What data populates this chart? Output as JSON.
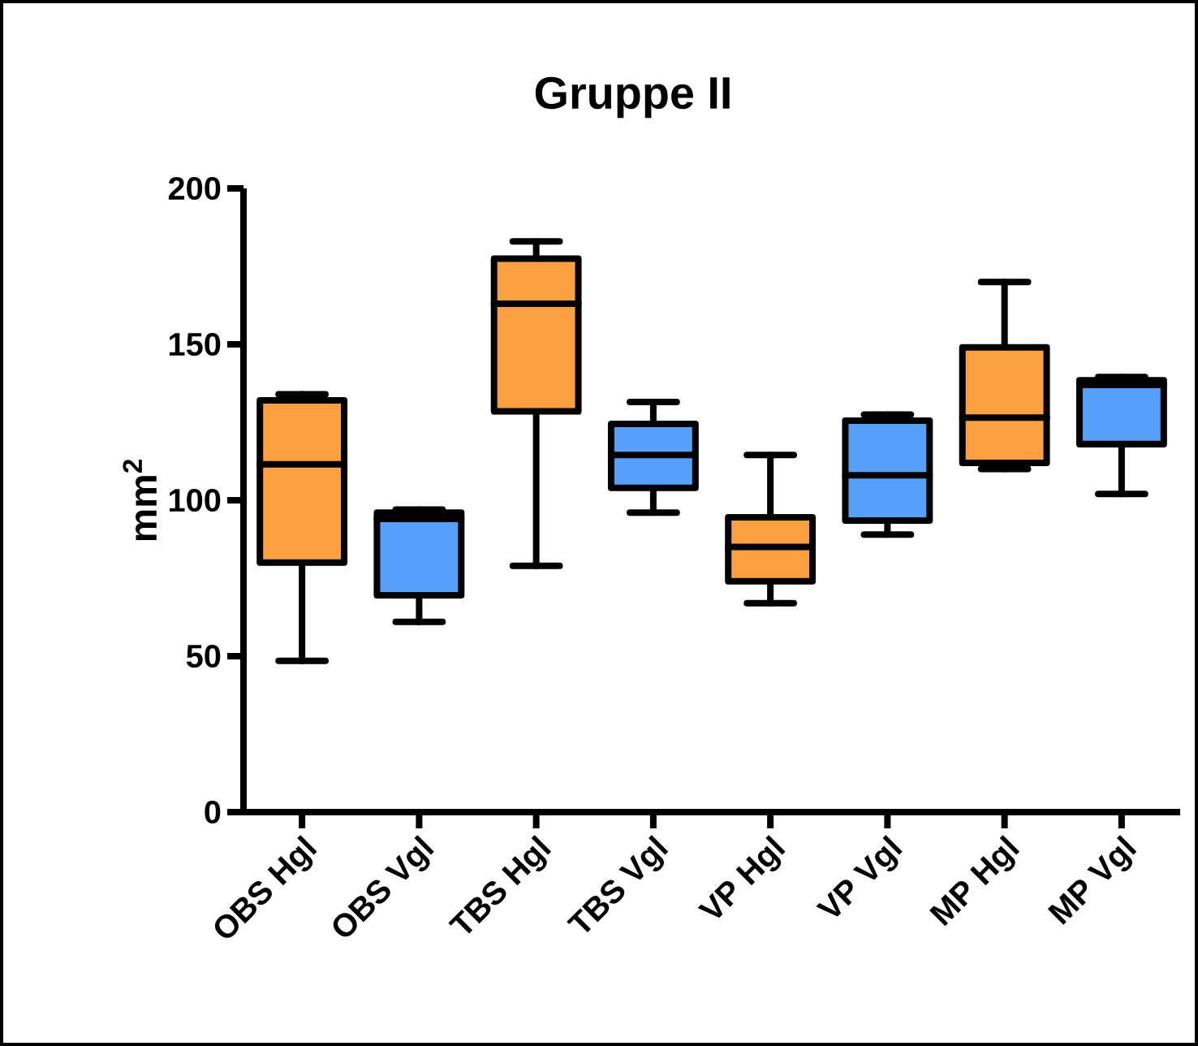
{
  "chart_data": {
    "type": "box",
    "title": "Gruppe II",
    "ylabel": "mm$^{2}$",
    "categories": [
      "OBS Hgl",
      "OBS Vgl",
      "TBS Hgl",
      "TBS Vgl",
      "VP Hgl",
      "VP Vgl",
      "MP Hgl",
      "MP Vgl"
    ],
    "boxes": [
      {
        "low": 48.5,
        "q1": 80,
        "median": 111.5,
        "q3": 132,
        "high": 134
      },
      {
        "low": 61,
        "q1": 69.5,
        "median": 94,
        "q3": 96,
        "high": 97
      },
      {
        "low": 79,
        "q1": 128.5,
        "median": 163,
        "q3": 177.5,
        "high": 183
      },
      {
        "low": 96,
        "q1": 104,
        "median": 114.5,
        "q3": 124.5,
        "high": 131.5
      },
      {
        "low": 67,
        "q1": 74,
        "median": 85,
        "q3": 94.5,
        "high": 114.5
      },
      {
        "low": 89,
        "q1": 93.5,
        "median": 108,
        "q3": 125.5,
        "high": 127.5
      },
      {
        "low": 110,
        "q1": 112,
        "median": 126.5,
        "q3": 149,
        "high": 170
      },
      {
        "low": 102,
        "q1": 118,
        "median": 137,
        "q3": 138.5,
        "high": 139.5
      }
    ],
    "colors": [
      "#fba040",
      "#56a0fa",
      "#fba040",
      "#56a0fa",
      "#fba040",
      "#56a0fa",
      "#fba040",
      "#56a0fa"
    ],
    "ylim": [
      0,
      200
    ],
    "yticks": [
      0,
      50,
      100,
      150,
      200
    ]
  }
}
